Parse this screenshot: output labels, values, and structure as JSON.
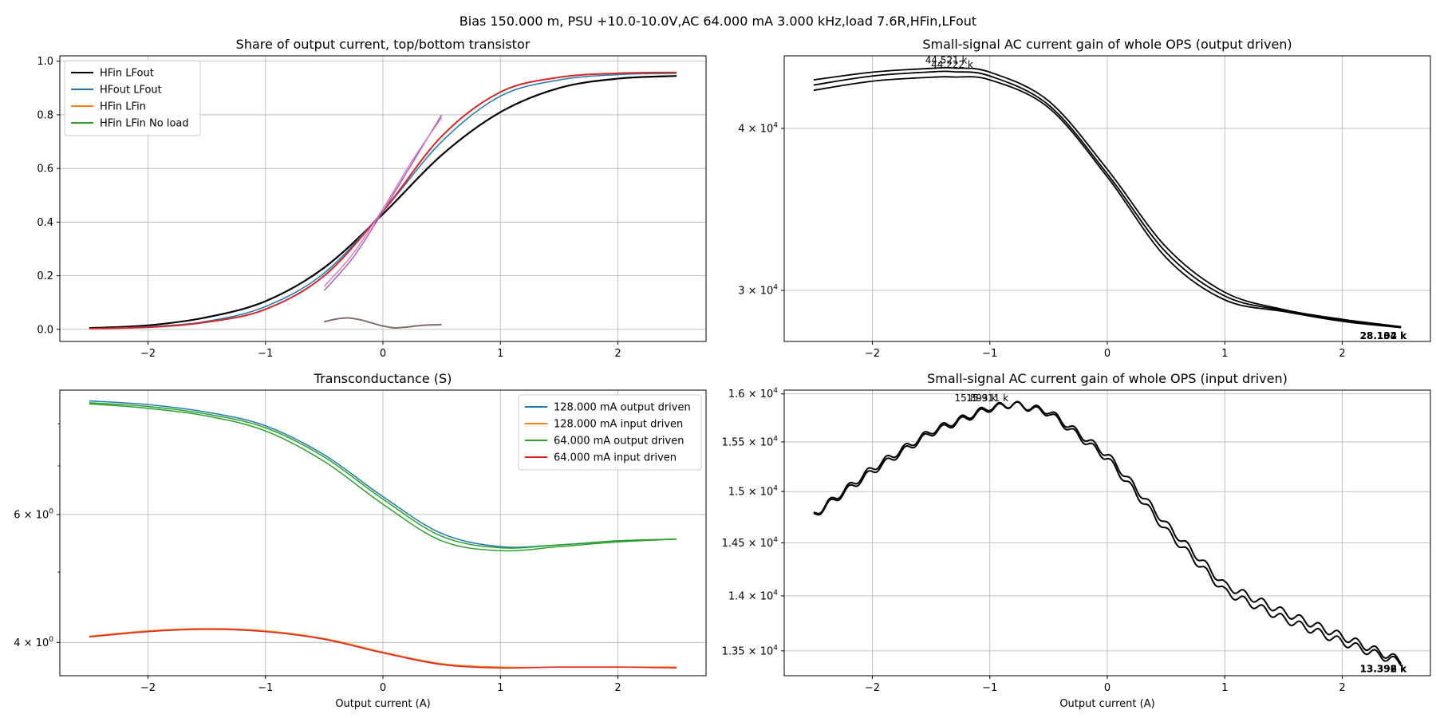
{
  "figure": {
    "suptitle": "Bias 150.000 m, PSU +10.0-10.0V,AC 64.000 mA 3.000 kHz,load 7.6R,HFin,LFout"
  },
  "chart_data": [
    {
      "id": "share",
      "type": "line",
      "title": "Share of output current, top/bottom transistor",
      "xlabel": "",
      "ylabel": "",
      "xlim": [
        -2.75,
        2.75
      ],
      "ylim": [
        -0.045,
        1.02
      ],
      "yscale": "linear",
      "xticks": [
        -2,
        -1,
        0,
        1,
        2
      ],
      "xtick_labels": [
        "−2",
        "−1",
        "0",
        "1",
        "2"
      ],
      "yticks": [
        0.0,
        0.2,
        0.4,
        0.6,
        0.8,
        1.0
      ],
      "ytick_labels": [
        "0.0",
        "0.2",
        "0.4",
        "0.6",
        "0.8",
        "1.0"
      ],
      "grid": true,
      "legend_position": "upper-left",
      "legend": [
        {
          "label": "HFin LFout",
          "color": "#000000"
        },
        {
          "label": "HFout LFout",
          "color": "#1f77b4"
        },
        {
          "label": "HFin LFin",
          "color": "#ff7f0e"
        },
        {
          "label": "HFin LFin No load",
          "color": "#2ca02c"
        }
      ],
      "series": [
        {
          "color": "#000000",
          "width": 2.2,
          "points": [
            [
              -2.5,
              0.005
            ],
            [
              -2.0,
              0.015
            ],
            [
              -1.5,
              0.045
            ],
            [
              -1.0,
              0.105
            ],
            [
              -0.5,
              0.23
            ],
            [
              0.0,
              0.43
            ],
            [
              0.5,
              0.65
            ],
            [
              1.0,
              0.81
            ],
            [
              1.5,
              0.9
            ],
            [
              2.0,
              0.935
            ],
            [
              2.5,
              0.945
            ]
          ]
        },
        {
          "color": "#1f77b4",
          "width": 1.5,
          "points": [
            [
              -2.5,
              0.003
            ],
            [
              -2.0,
              0.01
            ],
            [
              -1.5,
              0.03
            ],
            [
              -1.0,
              0.085
            ],
            [
              -0.5,
              0.21
            ],
            [
              0.0,
              0.44
            ],
            [
              0.5,
              0.7
            ],
            [
              1.0,
              0.87
            ],
            [
              1.5,
              0.93
            ],
            [
              2.0,
              0.95
            ],
            [
              2.5,
              0.955
            ]
          ]
        },
        {
          "color": "#d62728",
          "width": 2.0,
          "points": [
            [
              -2.5,
              0.003
            ],
            [
              -2.0,
              0.008
            ],
            [
              -1.5,
              0.027
            ],
            [
              -1.0,
              0.075
            ],
            [
              -0.5,
              0.2
            ],
            [
              0.0,
              0.44
            ],
            [
              0.5,
              0.72
            ],
            [
              1.0,
              0.885
            ],
            [
              1.5,
              0.94
            ],
            [
              2.0,
              0.955
            ],
            [
              2.5,
              0.958
            ]
          ]
        },
        {
          "color": "#9467bd",
          "width": 1.5,
          "points": [
            [
              -0.5,
              0.145
            ],
            [
              -0.25,
              0.27
            ],
            [
              0.0,
              0.44
            ],
            [
              0.25,
              0.62
            ],
            [
              0.5,
              0.8
            ]
          ]
        },
        {
          "color": "#e377c2",
          "width": 1.5,
          "points": [
            [
              -0.5,
              0.16
            ],
            [
              -0.25,
              0.285
            ],
            [
              0.0,
              0.45
            ],
            [
              0.25,
              0.63
            ],
            [
              0.5,
              0.79
            ]
          ]
        },
        {
          "color": "#8c564b",
          "width": 1.5,
          "points": [
            [
              -0.5,
              0.028
            ],
            [
              -0.4,
              0.038
            ],
            [
              -0.3,
              0.042
            ],
            [
              -0.2,
              0.036
            ],
            [
              -0.1,
              0.024
            ],
            [
              0.0,
              0.012
            ],
            [
              0.1,
              0.005
            ],
            [
              0.2,
              0.008
            ],
            [
              0.3,
              0.013
            ],
            [
              0.4,
              0.016
            ],
            [
              0.5,
              0.017
            ]
          ]
        },
        {
          "color": "#7f7f7f",
          "width": 1.2,
          "points": [
            [
              -0.5,
              0.03
            ],
            [
              -0.4,
              0.04
            ],
            [
              -0.3,
              0.044
            ],
            [
              -0.2,
              0.038
            ],
            [
              -0.1,
              0.026
            ],
            [
              0.0,
              0.014
            ],
            [
              0.1,
              0.007
            ],
            [
              0.2,
              0.01
            ],
            [
              0.3,
              0.015
            ],
            [
              0.4,
              0.018
            ],
            [
              0.5,
              0.019
            ]
          ]
        }
      ]
    },
    {
      "id": "gain_output",
      "type": "line",
      "title": "Small-signal AC current gain of whole OPS (output driven)",
      "xlabel": "",
      "ylabel": "",
      "xlim": [
        -2.75,
        2.75
      ],
      "ylim": [
        27400,
        45500
      ],
      "yscale": "log",
      "xticks": [
        -2,
        -1,
        0,
        1,
        2
      ],
      "xtick_labels": [
        "−2",
        "−1",
        "0",
        "1",
        "2"
      ],
      "yticks": [
        30000,
        40000
      ],
      "ytick_labels": [
        "3 × 10^4",
        "4 × 10^4"
      ],
      "ytick_base": "3 × 10",
      "grid": true,
      "series": [
        {
          "color": "#000000",
          "width": 1.8,
          "points": [
            [
              -2.5,
              43600
            ],
            [
              -2.0,
              44200
            ],
            [
              -1.5,
              44500
            ],
            [
              -1.3,
              44521
            ],
            [
              -1.0,
              44200
            ],
            [
              -0.5,
              42000
            ],
            [
              0.0,
              37200
            ],
            [
              0.5,
              32400
            ],
            [
              1.0,
              29900
            ],
            [
              1.5,
              29000
            ],
            [
              2.0,
              28500
            ],
            [
              2.5,
              28130
            ]
          ]
        },
        {
          "color": "#000000",
          "width": 1.8,
          "points": [
            [
              -2.5,
              43200
            ],
            [
              -2.0,
              43900
            ],
            [
              -1.5,
              44220
            ],
            [
              -1.3,
              44230
            ],
            [
              -1.0,
              43900
            ],
            [
              -0.5,
              41700
            ],
            [
              0.0,
              36900
            ],
            [
              0.5,
              32100
            ],
            [
              1.0,
              29700
            ],
            [
              1.5,
              28950
            ],
            [
              2.0,
              28450
            ],
            [
              2.5,
              28100
            ]
          ]
        },
        {
          "color": "#000000",
          "width": 1.8,
          "points": [
            [
              -2.5,
              42800
            ],
            [
              -2.0,
              43500
            ],
            [
              -1.5,
              43800
            ],
            [
              -1.3,
              43820
            ],
            [
              -1.0,
              43600
            ],
            [
              -0.5,
              41500
            ],
            [
              0.0,
              36700
            ],
            [
              0.5,
              31800
            ],
            [
              1.0,
              29500
            ],
            [
              1.5,
              28900
            ],
            [
              2.0,
              28400
            ],
            [
              2.5,
              28080
            ]
          ]
        }
      ],
      "annotations": [
        {
          "text": "44.521 k",
          "x": -1.55,
          "y": 44900,
          "bold": false
        },
        {
          "text": "44.222 k",
          "x": -1.5,
          "y": 44550,
          "bold": false
        },
        {
          "text": "28.102 k",
          "x": 2.15,
          "y": 27520,
          "bold": true
        },
        {
          "text": "28.134 k",
          "x": 2.15,
          "y": 27520,
          "bold": true
        }
      ]
    },
    {
      "id": "transconductance",
      "type": "line",
      "title": "Transconductance (S)",
      "xlabel": "Output current (A)",
      "ylabel": "",
      "xlim": [
        -2.75,
        2.75
      ],
      "ylim": [
        3.6,
        8.9
      ],
      "yscale": "log",
      "xticks": [
        -2,
        -1,
        0,
        1,
        2
      ],
      "xtick_labels": [
        "−2",
        "−1",
        "0",
        "1",
        "2"
      ],
      "yticks": [
        4,
        6
      ],
      "ytick_labels": [
        "4 × 10^0",
        "6 × 10^0"
      ],
      "minor_yticks": [
        5,
        7,
        8
      ],
      "grid": true,
      "legend_position": "upper-right",
      "legend": [
        {
          "label": "128.000 mA output driven",
          "color": "#1f77b4"
        },
        {
          "label": "128.000 mA input driven",
          "color": "#ff7f0e"
        },
        {
          "label": "64.000 mA output driven",
          "color": "#2ca02c"
        },
        {
          "label": "64.000 mA input driven",
          "color": "#d62728"
        }
      ],
      "series": [
        {
          "color": "#1f77b4",
          "width": 1.5,
          "points": [
            [
              -2.5,
              8.6
            ],
            [
              -2.0,
              8.5
            ],
            [
              -1.5,
              8.3
            ],
            [
              -1.0,
              7.95
            ],
            [
              -0.5,
              7.25
            ],
            [
              0.0,
              6.35
            ],
            [
              0.5,
              5.65
            ],
            [
              1.0,
              5.42
            ],
            [
              1.5,
              5.45
            ],
            [
              2.0,
              5.52
            ],
            [
              2.5,
              5.55
            ]
          ]
        },
        {
          "color": "#ff7f0e",
          "width": 1.5,
          "points": [
            [
              -2.5,
              4.08
            ],
            [
              -2.0,
              4.15
            ],
            [
              -1.5,
              4.18
            ],
            [
              -1.0,
              4.15
            ],
            [
              -0.5,
              4.05
            ],
            [
              0.0,
              3.88
            ],
            [
              0.5,
              3.74
            ],
            [
              1.0,
              3.7
            ],
            [
              1.5,
              3.7
            ],
            [
              2.0,
              3.7
            ],
            [
              2.5,
              3.7
            ]
          ]
        },
        {
          "color": "#2ca02c",
          "width": 1.5,
          "points": [
            [
              -2.5,
              8.55
            ],
            [
              -2.0,
              8.45
            ],
            [
              -1.5,
              8.25
            ],
            [
              -1.0,
              7.9
            ],
            [
              -0.5,
              7.2
            ],
            [
              0.0,
              6.3
            ],
            [
              0.5,
              5.6
            ],
            [
              1.0,
              5.4
            ],
            [
              1.5,
              5.45
            ],
            [
              2.0,
              5.52
            ],
            [
              2.5,
              5.55
            ]
          ]
        },
        {
          "color": "#2ca02c",
          "width": 1.5,
          "points": [
            [
              -2.5,
              8.52
            ],
            [
              -2.0,
              8.4
            ],
            [
              -1.5,
              8.2
            ],
            [
              -1.0,
              7.82
            ],
            [
              -0.5,
              7.1
            ],
            [
              0.0,
              6.2
            ],
            [
              0.5,
              5.52
            ],
            [
              1.0,
              5.35
            ],
            [
              1.5,
              5.42
            ],
            [
              2.0,
              5.5
            ],
            [
              2.5,
              5.55
            ]
          ]
        },
        {
          "color": "#d62728",
          "width": 1.5,
          "points": [
            [
              -2.5,
              4.07
            ],
            [
              -2.0,
              4.14
            ],
            [
              -1.5,
              4.17
            ],
            [
              -1.0,
              4.14
            ],
            [
              -0.5,
              4.04
            ],
            [
              0.0,
              3.87
            ],
            [
              0.5,
              3.73
            ],
            [
              1.0,
              3.69
            ],
            [
              1.5,
              3.7
            ],
            [
              2.0,
              3.7
            ],
            [
              2.5,
              3.69
            ]
          ]
        }
      ]
    },
    {
      "id": "gain_input",
      "type": "line",
      "title": "Small-signal AC current gain of whole OPS (input driven)",
      "xlabel": "Output current (A)",
      "ylabel": "",
      "xlim": [
        -2.75,
        2.75
      ],
      "ylim": [
        13280,
        16040
      ],
      "yscale": "log",
      "xticks": [
        -2,
        -1,
        0,
        1,
        2
      ],
      "xtick_labels": [
        "−2",
        "−1",
        "0",
        "1",
        "2"
      ],
      "yticks": [
        13500,
        14000,
        14500,
        15000,
        15500,
        16000
      ],
      "ytick_labels": [
        "1.35 × 10^4",
        "1.4 × 10^4",
        "1.45 × 10^4",
        "1.5 × 10^4",
        "1.55 × 10^4",
        "1.6 × 10^4"
      ],
      "grid": true,
      "series": [
        {
          "color": "#000000",
          "width": 2.0,
          "wobble": 35,
          "points": [
            [
              -2.5,
              14770
            ],
            [
              -2.0,
              15230
            ],
            [
              -1.5,
              15610
            ],
            [
              -1.0,
              15860
            ],
            [
              -0.8,
              15893
            ],
            [
              -0.5,
              15820
            ],
            [
              0.0,
              15370
            ],
            [
              0.5,
              14680
            ],
            [
              1.0,
              14100
            ],
            [
              1.5,
              13850
            ],
            [
              2.0,
              13630
            ],
            [
              2.5,
              13410
            ]
          ]
        },
        {
          "color": "#000000",
          "width": 2.0,
          "wobble": 35,
          "points": [
            [
              -2.5,
              14760
            ],
            [
              -2.0,
              15200
            ],
            [
              -1.5,
              15590
            ],
            [
              -1.0,
              15845
            ],
            [
              -0.8,
              15891
            ],
            [
              -0.5,
              15800
            ],
            [
              0.0,
              15330
            ],
            [
              0.5,
              14620
            ],
            [
              1.0,
              14040
            ],
            [
              1.5,
              13790
            ],
            [
              2.0,
              13580
            ],
            [
              2.5,
              13392
            ]
          ]
        }
      ],
      "annotations": [
        {
          "text": "15.893 k",
          "x": -1.3,
          "y": 15920,
          "bold": false
        },
        {
          "text": "15.911 k",
          "x": -1.2,
          "y": 15920,
          "bold": false
        },
        {
          "text": "13.396 k",
          "x": 2.15,
          "y": 13310,
          "bold": true
        },
        {
          "text": "13.392 k",
          "x": 2.15,
          "y": 13310,
          "bold": true
        }
      ]
    }
  ]
}
